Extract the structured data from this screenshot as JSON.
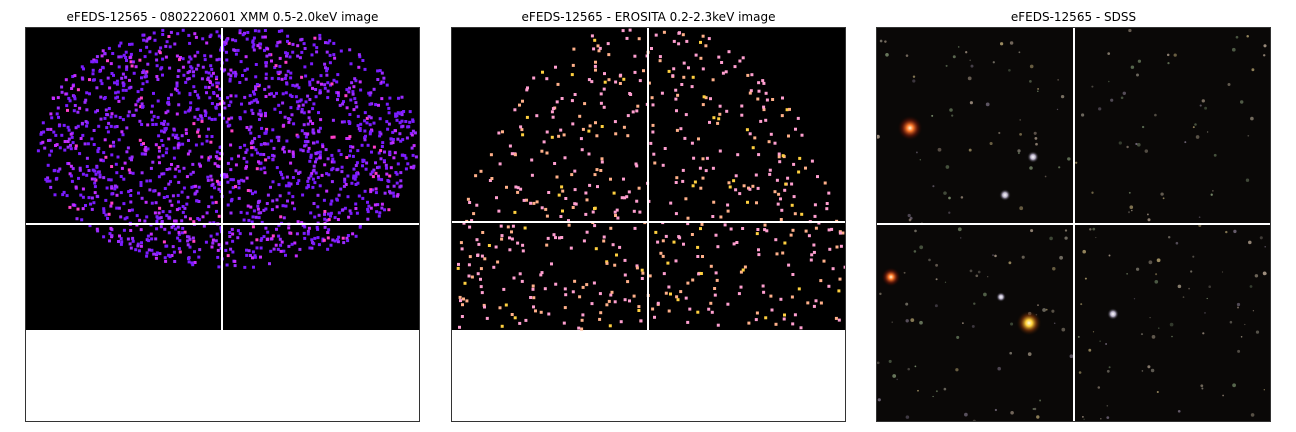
{
  "panels": [
    {
      "title": "eFEDS-12565 - 0802220601 XMM 0.5-2.0keV image"
    },
    {
      "title": "eFEDS-12565 -  EROSITA 0.2-2.3keV image"
    },
    {
      "title": "eFEDS-12565 - SDSS"
    }
  ],
  "colors": {
    "xmm_points": [
      "#7a1cff",
      "#9a2bff",
      "#c42cff",
      "#ff3fc8"
    ],
    "erosita_points": [
      "#ff9fd0",
      "#ffb08a",
      "#ffd040"
    ],
    "crosshair": "#ffffff",
    "sky_background": "#000000"
  }
}
